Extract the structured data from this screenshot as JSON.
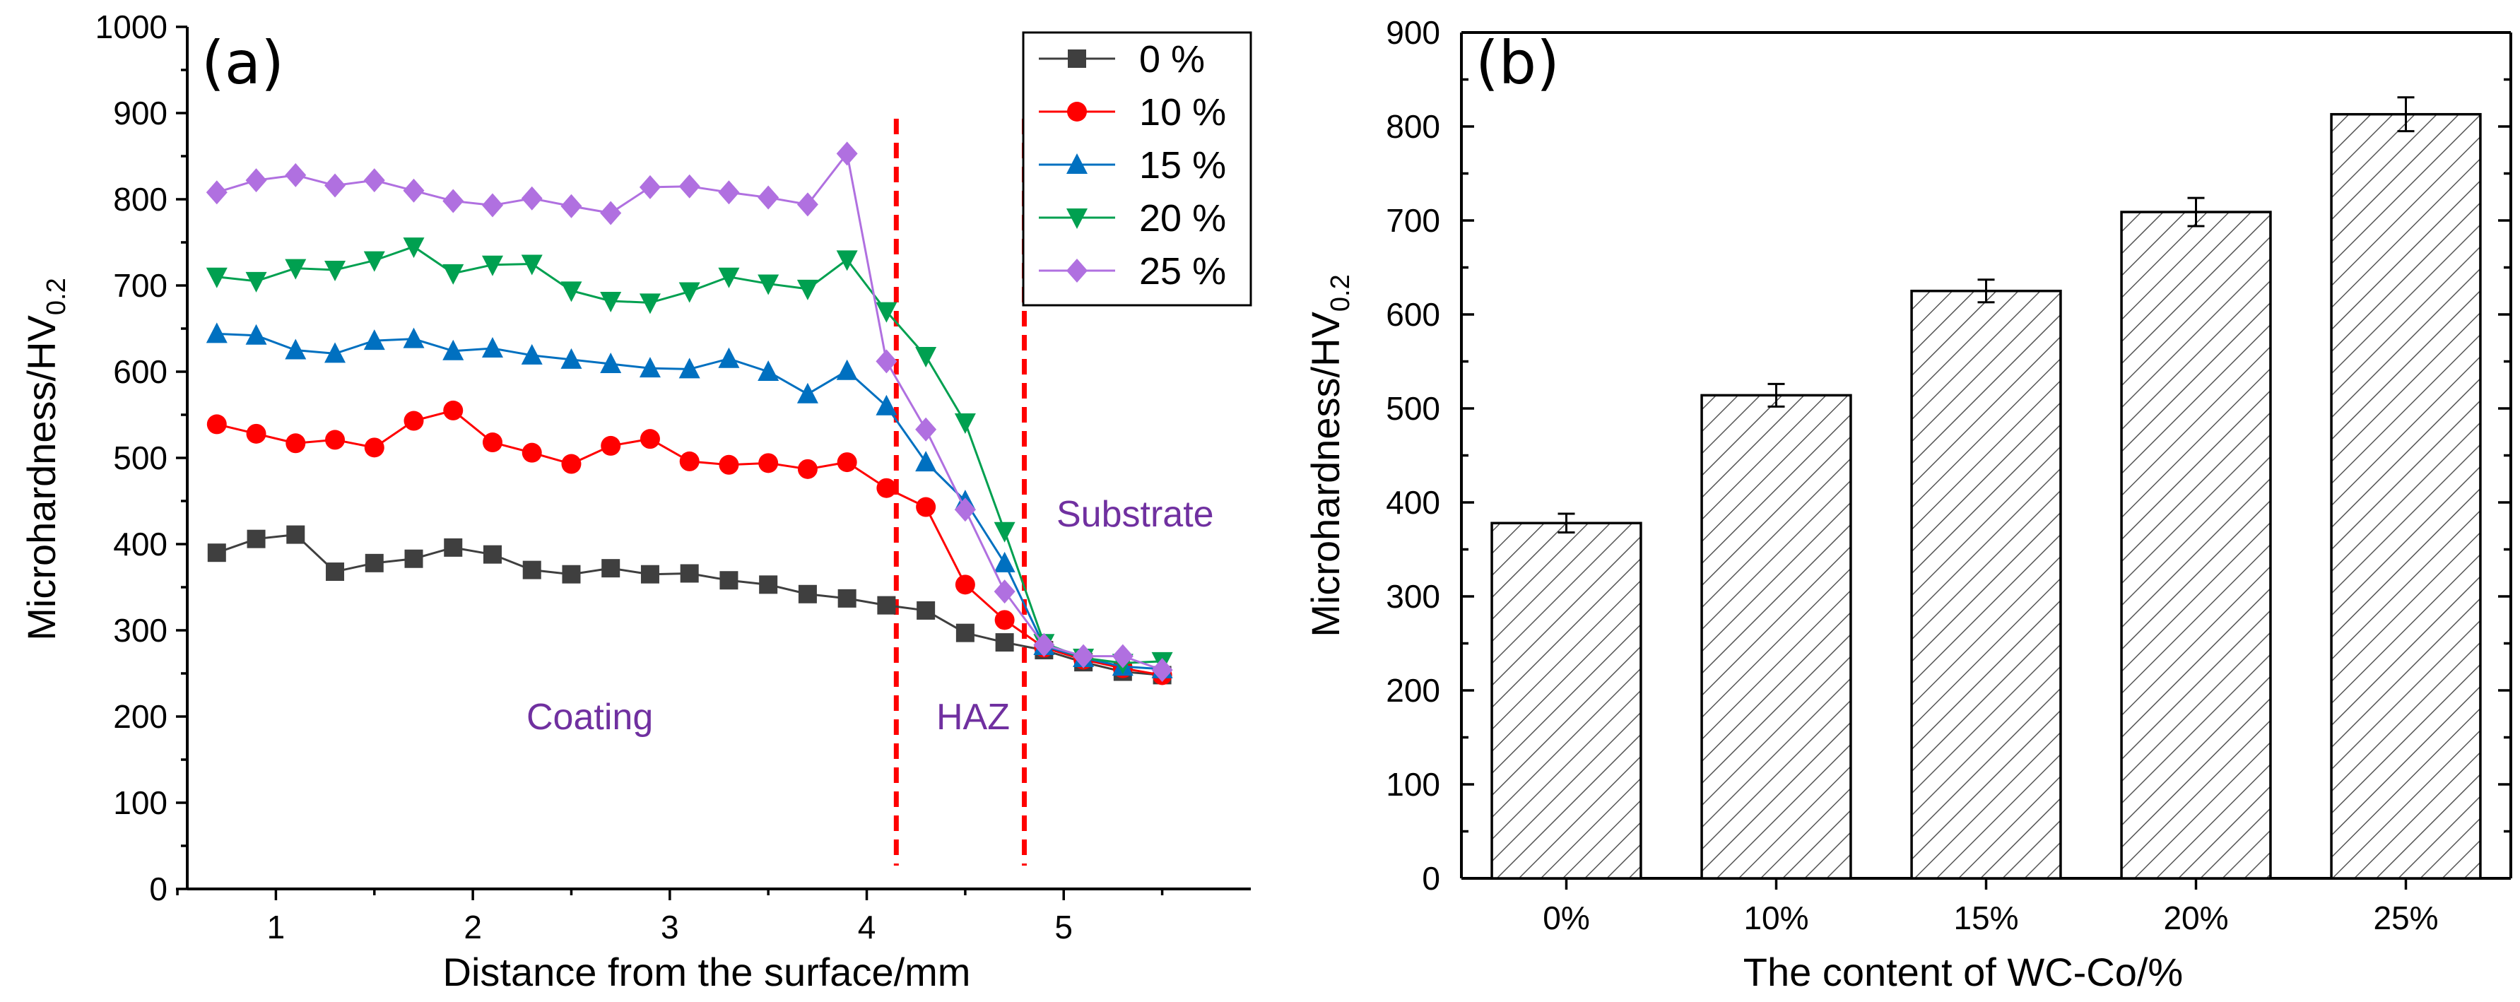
{
  "chart_data": [
    {
      "panel": "(a)",
      "type": "line",
      "xlabel": "Distance from the surface/mm",
      "ylabel": "Microhardness/HV",
      "ylabel_sub": "0.2",
      "xlim": [
        0.55,
        5.95
      ],
      "ylim": [
        0,
        1000
      ],
      "xticks": [
        1,
        2,
        3,
        4,
        5
      ],
      "yticks": [
        0,
        100,
        200,
        300,
        400,
        500,
        600,
        700,
        800,
        900,
        1000
      ],
      "x": [
        0.7,
        0.9,
        1.1,
        1.3,
        1.5,
        1.7,
        1.9,
        2.1,
        2.3,
        2.5,
        2.7,
        2.9,
        3.1,
        3.3,
        3.5,
        3.7,
        3.9,
        4.1,
        4.3,
        4.5,
        4.7,
        4.9,
        5.1,
        5.3,
        5.5
      ],
      "series": [
        {
          "name": "0 %",
          "color": "#3f3f3f",
          "marker": "square",
          "values": [
            390,
            406,
            411,
            368,
            378,
            383,
            396,
            388,
            370,
            365,
            372,
            365,
            366,
            358,
            353,
            342,
            337,
            329,
            323,
            297,
            286,
            277,
            263,
            252,
            248
          ]
        },
        {
          "name": "10 %",
          "color": "#ff0000",
          "marker": "circle",
          "values": [
            539,
            528,
            517,
            521,
            512,
            543,
            555,
            518,
            506,
            493,
            514,
            522,
            496,
            492,
            494,
            487,
            495,
            465,
            443,
            353,
            312,
            280,
            266,
            256,
            248
          ]
        },
        {
          "name": "15 %",
          "color": "#0070c0",
          "marker": "triangle-up",
          "values": [
            644,
            642,
            625,
            621,
            636,
            638,
            624,
            627,
            619,
            614,
            609,
            604,
            603,
            615,
            600,
            574,
            601,
            560,
            495,
            450,
            378,
            282,
            268,
            258,
            255
          ]
        },
        {
          "name": "20 %",
          "color": "#00a050",
          "marker": "triangle-down",
          "values": [
            710,
            705,
            720,
            718,
            729,
            745,
            714,
            724,
            725,
            694,
            682,
            680,
            693,
            710,
            702,
            696,
            730,
            670,
            618,
            541,
            415,
            285,
            268,
            262,
            264
          ]
        },
        {
          "name": "25 %",
          "color": "#b070e0",
          "marker": "diamond",
          "values": [
            808,
            822,
            828,
            816,
            822,
            810,
            798,
            793,
            801,
            792,
            784,
            814,
            815,
            808,
            802,
            794,
            853,
            612,
            533,
            440,
            345,
            283,
            270,
            270,
            254
          ]
        }
      ],
      "boundaries": [
        4.15,
        4.8
      ],
      "annotations": [
        "Coating",
        "HAZ",
        "Substrate"
      ],
      "legend": "top-right"
    },
    {
      "panel": "(b)",
      "type": "bar",
      "xlabel": "The content of WC-Co/%",
      "ylabel": "Microhardness/HV",
      "ylabel_sub": "0.2",
      "ylim": [
        0,
        900
      ],
      "yticks": [
        0,
        100,
        200,
        300,
        400,
        500,
        600,
        700,
        800,
        900
      ],
      "categories": [
        "0%",
        "10%",
        "15%",
        "20%",
        "25%"
      ],
      "values": [
        378,
        514,
        625,
        709,
        813
      ],
      "errors": [
        10,
        12,
        12,
        15,
        18
      ]
    }
  ]
}
